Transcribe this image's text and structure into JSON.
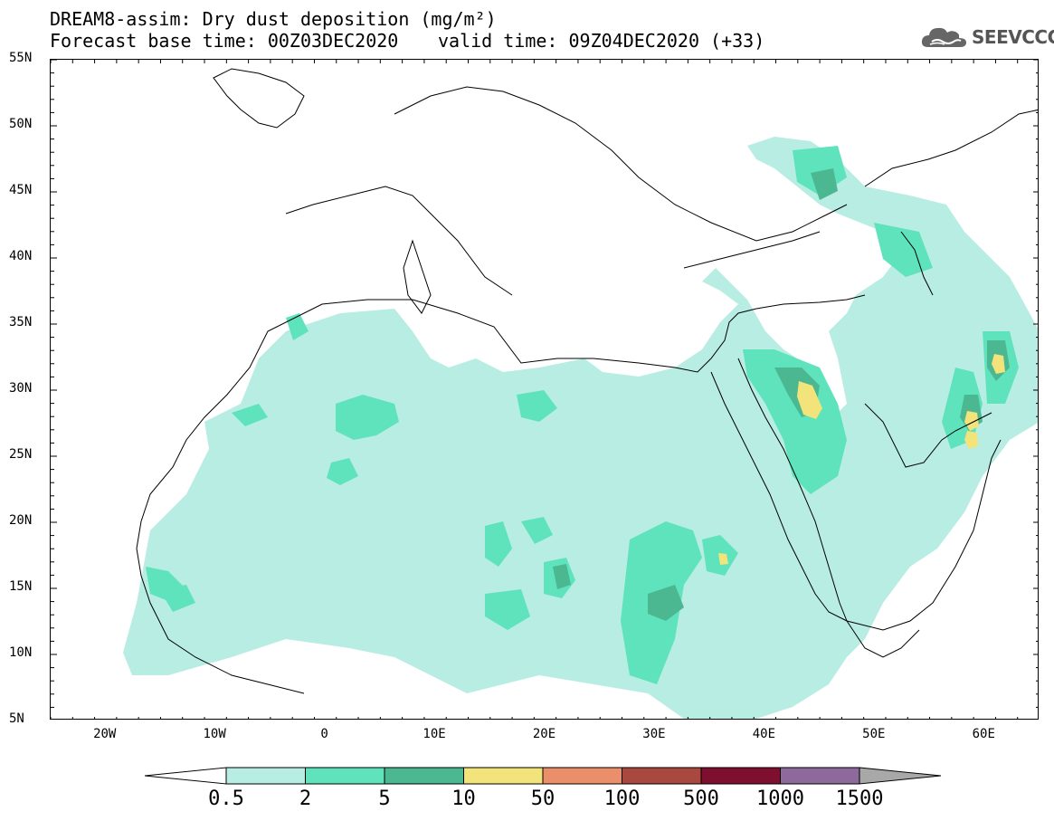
{
  "header": {
    "title": "DREAM8-assim: Dry dust deposition (mg/m²)",
    "base_time": "Forecast base time: 00Z03DEC2020",
    "valid_time": "valid time: 09Z04DEC2020 (+33)",
    "logo_text": "SEEVCCC",
    "logo_icon": "cloud-icon"
  },
  "map": {
    "lon_range": [
      -25,
      65
    ],
    "lat_range": [
      5,
      55
    ],
    "lat_labels": [
      "55N",
      "50N",
      "45N",
      "40N",
      "35N",
      "30N",
      "25N",
      "20N",
      "15N",
      "10N",
      "5N"
    ],
    "lon_labels": [
      "20W",
      "10W",
      "0",
      "10E",
      "20E",
      "30E",
      "40E",
      "50E",
      "60E"
    ],
    "projection": "equirectangular"
  },
  "legend": {
    "levels": [
      "0.5",
      "2",
      "5",
      "10",
      "50",
      "100",
      "500",
      "1000",
      "1500"
    ],
    "colors": [
      "#ffffff",
      "#b8ede3",
      "#5ee3bd",
      "#4bb892",
      "#f2e37a",
      "#eb8f6a",
      "#a9483e",
      "#7e0f2f",
      "#8d6a9b",
      "#a8a8a8"
    ],
    "extend": "both"
  }
}
